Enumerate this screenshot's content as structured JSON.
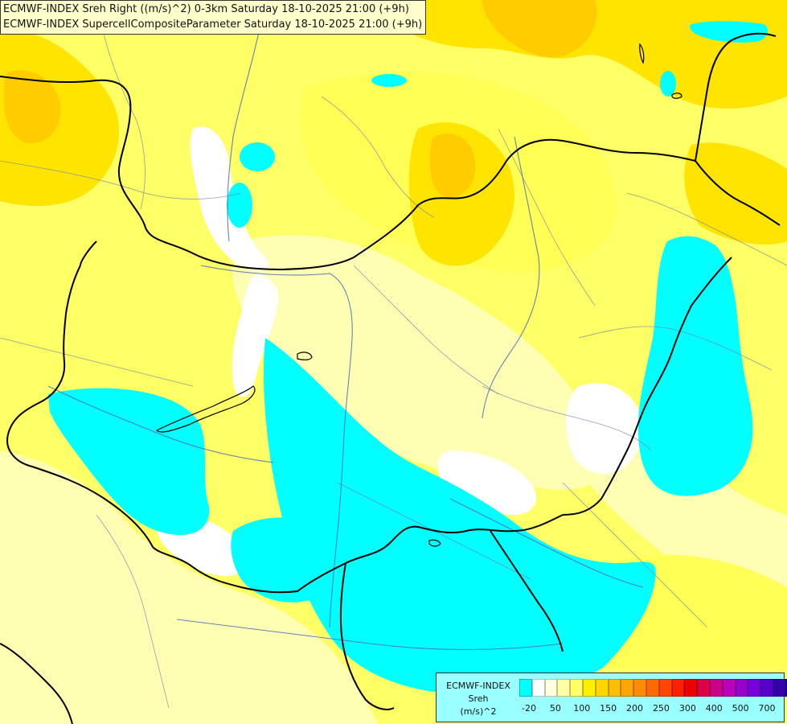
{
  "titles": {
    "line1": "ECMWF-INDEX Sreh Right ((m/s)^2) 0-3km Saturday 18-10-2025 21:00 (+9h)",
    "line2": "ECMWF-INDEX SupercellCompositeParameter Saturday 18-10-2025 21:00 (+9h)"
  },
  "legend": {
    "line1": "ECMWF-INDEX",
    "line2": "Sreh",
    "line3": "(m/s)^2",
    "colors": [
      "#00ffff",
      "#ffffff",
      "#ffffe0",
      "#ffffa8",
      "#ffff66",
      "#ffee00",
      "#ffd700",
      "#ffbf00",
      "#ffa500",
      "#ff8c00",
      "#ff6a00",
      "#ff4500",
      "#ff2000",
      "#ee0000",
      "#dd0044",
      "#cc0088",
      "#bb00bb",
      "#9900cc",
      "#7700dd",
      "#5500cc",
      "#3300aa",
      "#110088"
    ],
    "ticks": [
      "-20",
      "50",
      "100",
      "150",
      "200",
      "250",
      "300",
      "400",
      "500",
      "700"
    ]
  },
  "map": {
    "palette": {
      "cyan": "#00ffff",
      "white": "#ffffff",
      "pale": "#ffffb3",
      "yellow": "#ffff55",
      "gold": "#ffe400",
      "orange": "#ffcc00",
      "border": "#000000",
      "river": "#4a6fb8",
      "region": "#6a7fb0"
    }
  }
}
